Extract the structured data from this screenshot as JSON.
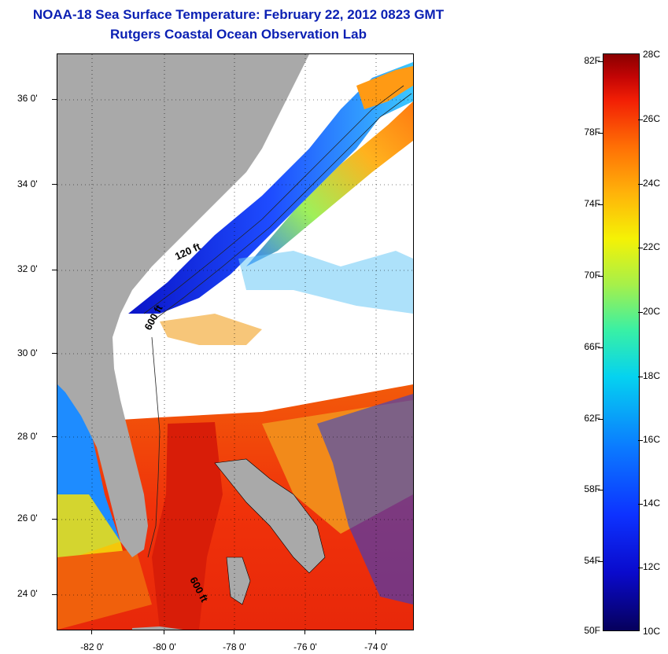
{
  "title": {
    "line1": "NOAA-18 Sea Surface Temperature:  February 22, 2012 0823 GMT",
    "line2": "Rutgers Coastal Ocean Observation Lab"
  },
  "map": {
    "lat_labels": [
      "36 0'",
      "34 0'",
      "32 0'",
      "30 0'",
      "28 0'",
      "26 0'",
      "24 0'"
    ],
    "lon_labels": [
      "-82 0'",
      "-80 0'",
      "-78 0'",
      "-76 0'",
      "-74 0'"
    ],
    "contour_labels": [
      "120 ft",
      "600 ft",
      "600 ft"
    ],
    "colors": {
      "land": "#a9a9a9",
      "cloud": "#ffffff",
      "cold_shelf": "#1a2fd6",
      "gulf_stream": "#e8280a",
      "warm_sargasso": "#f27a14"
    }
  },
  "colorbar": {
    "fahrenheit_labels": [
      "82F",
      "78F",
      "74F",
      "70F",
      "66F",
      "62F",
      "58F",
      "54F",
      "50F"
    ],
    "celsius_labels": [
      "28C",
      "26C",
      "24C",
      "22C",
      "20C",
      "18C",
      "16C",
      "14C",
      "12C",
      "10C"
    ]
  }
}
